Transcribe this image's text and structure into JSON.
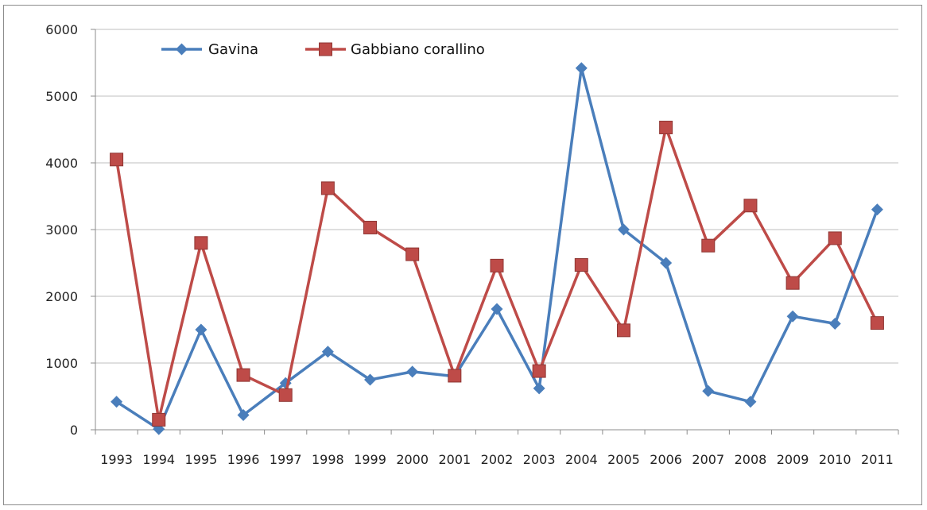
{
  "chart_data": {
    "type": "line",
    "categories": [
      "1993",
      "1994",
      "1995",
      "1996",
      "1997",
      "1998",
      "1999",
      "2000",
      "2001",
      "2002",
      "2003",
      "2004",
      "2005",
      "2006",
      "2007",
      "2008",
      "2009",
      "2010",
      "2011"
    ],
    "series": [
      {
        "name": "Gavina",
        "color": "#4a7ebb",
        "marker": "diamond",
        "values": [
          420,
          10,
          1500,
          220,
          700,
          1170,
          750,
          870,
          800,
          1810,
          620,
          5420,
          3000,
          2500,
          580,
          420,
          1700,
          1590,
          3300
        ]
      },
      {
        "name": "Gabbiano corallino",
        "color": "#be4b48",
        "marker": "square",
        "values": [
          4050,
          150,
          2800,
          820,
          520,
          3620,
          3030,
          2630,
          810,
          2460,
          880,
          2470,
          1490,
          4530,
          2760,
          3360,
          2200,
          2870,
          1600
        ]
      }
    ],
    "yticks": [
      "0",
      "1000",
      "2000",
      "3000",
      "4000",
      "5000",
      "6000"
    ],
    "ylim": [
      0,
      6000
    ],
    "grid": true,
    "legend_position": "top-left"
  }
}
